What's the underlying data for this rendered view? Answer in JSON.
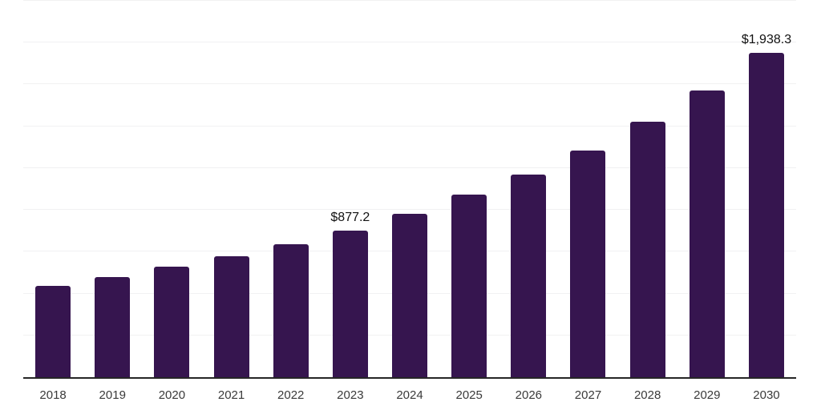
{
  "chart_data": {
    "type": "bar",
    "title": "",
    "xlabel": "",
    "ylabel": "",
    "categories": [
      "2018",
      "2019",
      "2020",
      "2021",
      "2022",
      "2023",
      "2024",
      "2025",
      "2026",
      "2027",
      "2028",
      "2029",
      "2030"
    ],
    "values": [
      546,
      600,
      660,
      723,
      796,
      877.2,
      975,
      1090,
      1210,
      1353,
      1525,
      1715,
      1938.3
    ],
    "data_labels": {
      "2023": "$877.2",
      "2030": "$1,938.3"
    },
    "ylim": [
      0,
      2250
    ],
    "gridline_interval": 250,
    "grid_on": true,
    "legend_position": "none",
    "y_axis_labels_shown": false,
    "colors": {
      "bar": "#36154f",
      "gridline": "#f1f1f2",
      "axis_line": "#262626",
      "tick_label": "#3a3a3a",
      "value_label": "#111111",
      "background": "#ffffff"
    }
  }
}
